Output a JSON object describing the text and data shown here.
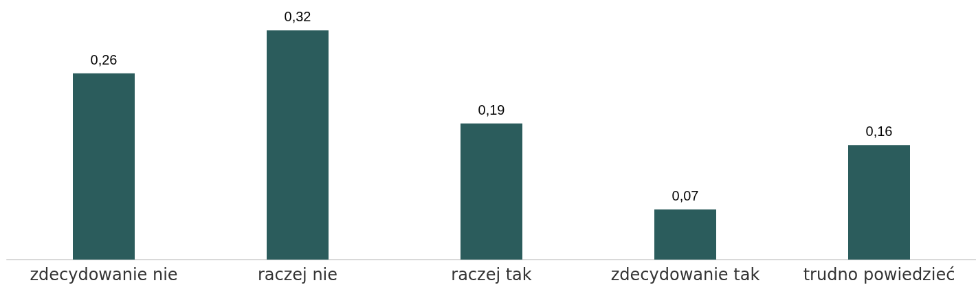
{
  "chart_data": {
    "type": "bar",
    "categories": [
      "zdecydowanie nie",
      "raczej nie",
      "raczej tak",
      "zdecydowanie tak",
      "trudno powiedzieć"
    ],
    "values": [
      0.26,
      0.32,
      0.19,
      0.07,
      0.16
    ],
    "value_labels": [
      "0,26",
      "0,32",
      "0,19",
      "0,07",
      "0,16"
    ],
    "color": "#2b5c5c"
  }
}
